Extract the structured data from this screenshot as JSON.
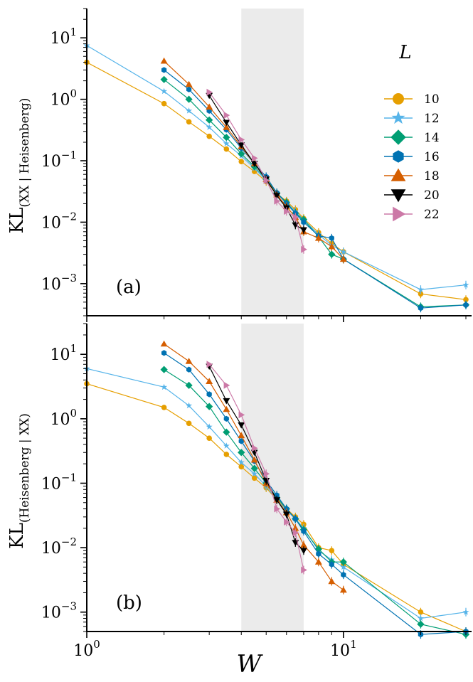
{
  "chart_data": [
    {
      "type": "line",
      "panel_label": "(a)",
      "ylabel": "KL_(XX | Heisenberg)",
      "ylabel_main": "KL",
      "ylabel_sub": "(XX | Heisenberg)",
      "x_scale": "log",
      "y_scale": "log",
      "xlim": [
        1,
        30
      ],
      "ylim": [
        0.0003,
        30
      ],
      "shaded_region_x": [
        4,
        7
      ],
      "legend": {
        "title": "L",
        "placement": "right"
      },
      "series": [
        {
          "name": "10",
          "x": [
            1,
            2,
            2.5,
            3,
            3.5,
            4,
            4.5,
            5,
            5.5,
            6,
            6.5,
            7,
            8,
            9,
            10,
            20,
            30
          ],
          "y": [
            4.0,
            0.85,
            0.43,
            0.25,
            0.155,
            0.097,
            0.067,
            0.046,
            0.029,
            0.022,
            0.016,
            0.0115,
            0.0068,
            0.0045,
            0.0033,
            0.00068,
            0.00055
          ]
        },
        {
          "name": "12",
          "x": [
            1,
            2,
            2.5,
            3,
            3.5,
            4,
            4.5,
            5,
            5.5,
            6,
            6.5,
            7,
            8,
            9,
            10,
            20,
            30
          ],
          "y": [
            7.5,
            1.35,
            0.65,
            0.35,
            0.19,
            0.12,
            0.075,
            0.048,
            0.029,
            0.021,
            0.015,
            0.011,
            0.0063,
            0.0042,
            0.0033,
            0.0008,
            0.00095
          ]
        },
        {
          "name": "14",
          "x": [
            2,
            2.5,
            3,
            3.5,
            4,
            4.5,
            5,
            5.5,
            6,
            6.5,
            7,
            8,
            9,
            10,
            20,
            30
          ],
          "y": [
            2.1,
            1.0,
            0.46,
            0.24,
            0.13,
            0.08,
            0.05,
            0.03,
            0.021,
            0.014,
            0.011,
            0.0058,
            0.003,
            0.0025,
            0.00042,
            0.00045
          ]
        },
        {
          "name": "16",
          "x": [
            2,
            2.5,
            3,
            3.5,
            4,
            4.5,
            5,
            5.5,
            6,
            6.5,
            7,
            8,
            9,
            10,
            20,
            30
          ],
          "y": [
            3.0,
            1.45,
            0.65,
            0.32,
            0.16,
            0.09,
            0.055,
            0.03,
            0.02,
            0.014,
            0.01,
            0.006,
            0.0055,
            0.0025,
            0.0004,
            0.00045
          ]
        },
        {
          "name": "18",
          "x": [
            2,
            2.5,
            3,
            3.5,
            4,
            4.5,
            5,
            5.5,
            6,
            6.5,
            7,
            8,
            9,
            10
          ],
          "y": [
            4.2,
            1.75,
            0.75,
            0.35,
            0.17,
            0.09,
            0.05,
            0.028,
            0.018,
            0.012,
            0.007,
            0.0055,
            0.004,
            0.0025
          ]
        },
        {
          "name": "20",
          "x": [
            3,
            3.5,
            4,
            4.5,
            5,
            5.5,
            6,
            6.5,
            7
          ],
          "y": [
            1.15,
            0.42,
            0.18,
            0.09,
            0.05,
            0.027,
            0.017,
            0.009,
            0.0075
          ]
        },
        {
          "name": "22",
          "x": [
            3,
            3.5,
            4,
            4.5,
            5,
            5.5,
            6,
            6.5,
            7
          ],
          "y": [
            1.3,
            0.55,
            0.22,
            0.11,
            0.048,
            0.022,
            0.015,
            0.012,
            0.0036
          ]
        }
      ]
    },
    {
      "type": "line",
      "panel_label": "(b)",
      "ylabel": "KL_(Heisenberg | XX)",
      "ylabel_main": "KL",
      "ylabel_sub": "(Heisenberg | XX)",
      "xlabel": "W",
      "x_scale": "log",
      "y_scale": "log",
      "xlim": [
        1,
        30
      ],
      "ylim": [
        0.0005,
        30
      ],
      "x_ticks": [
        "10^0",
        "10^1"
      ],
      "shaded_region_x": [
        4,
        7
      ],
      "series": [
        {
          "name": "10",
          "x": [
            1,
            2,
            2.5,
            3,
            3.5,
            4,
            4.5,
            5,
            5.5,
            6,
            6.5,
            7,
            8,
            9,
            10,
            20,
            30
          ],
          "y": [
            3.5,
            1.5,
            0.85,
            0.5,
            0.28,
            0.18,
            0.12,
            0.085,
            0.055,
            0.04,
            0.03,
            0.023,
            0.01,
            0.009,
            0.0055,
            0.001,
            0.0005
          ]
        },
        {
          "name": "12",
          "x": [
            1,
            2,
            2.5,
            3,
            3.5,
            4,
            4.5,
            5,
            5.5,
            6,
            6.5,
            7,
            8,
            9,
            10,
            20,
            30
          ],
          "y": [
            6.0,
            3.1,
            1.6,
            0.75,
            0.38,
            0.21,
            0.14,
            0.09,
            0.055,
            0.038,
            0.028,
            0.02,
            0.009,
            0.0065,
            0.005,
            0.0008,
            0.001
          ]
        },
        {
          "name": "14",
          "x": [
            2,
            2.5,
            3,
            3.5,
            4,
            4.5,
            5,
            5.5,
            6,
            6.5,
            7,
            8,
            9,
            10,
            20,
            30
          ],
          "y": [
            5.8,
            3.3,
            1.55,
            0.62,
            0.3,
            0.17,
            0.1,
            0.06,
            0.04,
            0.028,
            0.019,
            0.0095,
            0.006,
            0.006,
            0.00065,
            0.00045
          ]
        },
        {
          "name": "16",
          "x": [
            2,
            2.5,
            3,
            3.5,
            4,
            4.5,
            5,
            5.5,
            6,
            6.5,
            7,
            8,
            9,
            10,
            20,
            30
          ],
          "y": [
            10.5,
            5.8,
            2.4,
            1.0,
            0.45,
            0.22,
            0.11,
            0.065,
            0.04,
            0.028,
            0.018,
            0.008,
            0.0055,
            0.0038,
            0.00045,
            0.0005
          ]
        },
        {
          "name": "18",
          "x": [
            2,
            2.5,
            3,
            3.5,
            4,
            4.5,
            5,
            5.5,
            6,
            6.5,
            7,
            8,
            9,
            10
          ],
          "y": [
            14.5,
            7.8,
            3.8,
            1.4,
            0.55,
            0.23,
            0.1,
            0.055,
            0.035,
            0.02,
            0.011,
            0.006,
            0.003,
            0.0022
          ]
        },
        {
          "name": "20",
          "x": [
            3,
            3.5,
            4,
            4.5,
            5,
            5.5,
            6,
            6.5,
            7
          ],
          "y": [
            6.5,
            1.9,
            0.8,
            0.3,
            0.11,
            0.055,
            0.033,
            0.012,
            0.009
          ]
        },
        {
          "name": "22",
          "x": [
            3,
            3.5,
            4,
            4.5,
            5,
            5.5,
            6,
            6.5,
            7
          ],
          "y": [
            7.0,
            3.3,
            1.15,
            0.35,
            0.14,
            0.04,
            0.025,
            0.017,
            0.0045
          ]
        }
      ]
    }
  ],
  "colors": {
    "10": "#E69F00",
    "12": "#56B4E9",
    "14": "#009E73",
    "16": "#0072B2",
    "18": "#D55E00",
    "20": "#000000",
    "22": "#CC79A7",
    "shade": "#EBEBEB"
  },
  "markers": {
    "10": "circle",
    "12": "star",
    "14": "diamond",
    "16": "hexagon",
    "18": "triangle-up",
    "20": "triangle-down",
    "22": "triangle-right"
  }
}
